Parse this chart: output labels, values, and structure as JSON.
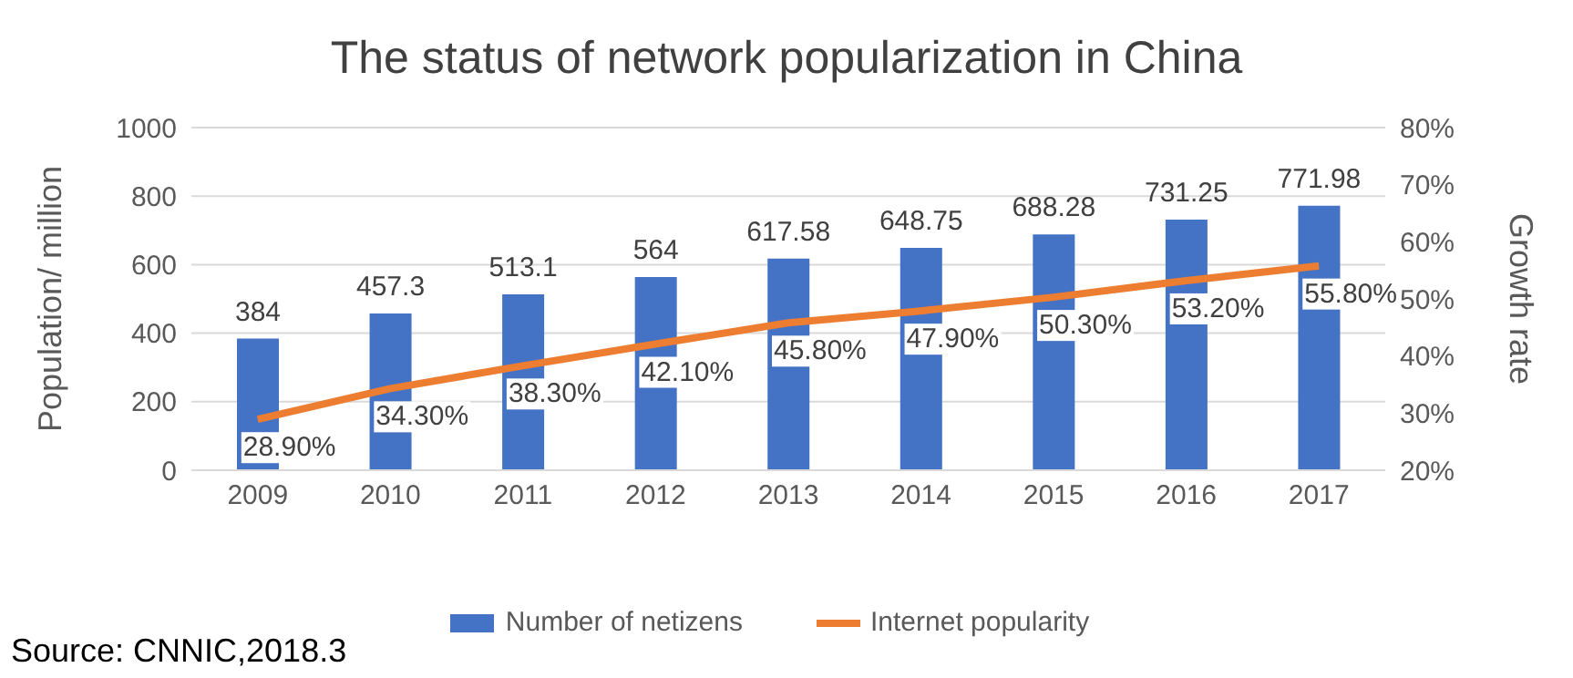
{
  "chart_data": {
    "type": "bar",
    "title": "The status of network popularization in China",
    "ylabel": "Population/ million",
    "y2label": "Growth rate",
    "categories": [
      "2009",
      "2010",
      "2011",
      "2012",
      "2013",
      "2014",
      "2015",
      "2016",
      "2017"
    ],
    "series": [
      {
        "name": "Number of netizens",
        "color": "#4472c4",
        "values": [
          384,
          457.3,
          513.1,
          564,
          617.58,
          648.75,
          688.28,
          731.25,
          771.98
        ],
        "value_labels": [
          "384",
          "457.3",
          "513.1",
          "564",
          "617.58",
          "648.75",
          "688.28",
          "731.25",
          "771.98"
        ]
      },
      {
        "name": "Internet popularity",
        "type": "line",
        "axis": "y2",
        "color": "#ed7d31",
        "marker": "none",
        "values": [
          28.9,
          34.3,
          38.3,
          42.1,
          45.8,
          47.9,
          50.3,
          53.2,
          55.8
        ],
        "value_labels": [
          "28.90%",
          "34.30%",
          "38.30%",
          "42.10%",
          "45.80%",
          "47.90%",
          "50.30%",
          "53.20%",
          "55.80%"
        ]
      }
    ],
    "ylim": [
      0,
      1000
    ],
    "yticks": [
      0,
      200,
      400,
      600,
      800,
      1000
    ],
    "y2lim": [
      20,
      80
    ],
    "y2ticks": [
      {
        "value": 20,
        "label": "20%"
      },
      {
        "value": 30,
        "label": "30%"
      },
      {
        "value": 40,
        "label": "40%"
      },
      {
        "value": 50,
        "label": "50%"
      },
      {
        "value": 60,
        "label": "60%"
      },
      {
        "value": 70,
        "label": "70%"
      },
      {
        "value": 80,
        "label": "80%"
      }
    ],
    "grid": "y",
    "legend": "bottom",
    "annotations": [
      "Source: CNNIC,2018.3"
    ]
  }
}
